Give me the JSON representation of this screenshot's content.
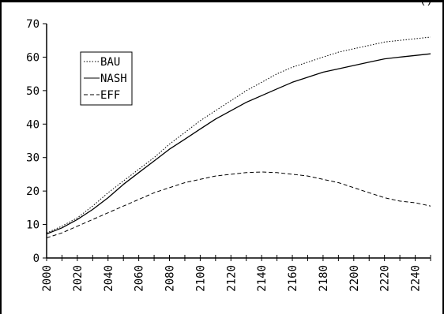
{
  "window": {
    "top_cut_text": "(       )"
  },
  "chart_data": {
    "type": "line",
    "title": "",
    "xlabel": "",
    "ylabel": "",
    "xlim": [
      2000,
      2250
    ],
    "ylim": [
      0,
      70
    ],
    "x_ticks": [
      2000,
      2020,
      2040,
      2060,
      2080,
      2100,
      2120,
      2140,
      2160,
      2180,
      2200,
      2220,
      2240
    ],
    "y_ticks": [
      0,
      10,
      20,
      30,
      40,
      50,
      60,
      70
    ],
    "legend": {
      "placement": "top-left"
    },
    "grid": false,
    "x": [
      2000,
      2010,
      2020,
      2030,
      2040,
      2050,
      2060,
      2070,
      2080,
      2090,
      2100,
      2110,
      2120,
      2130,
      2140,
      2150,
      2160,
      2170,
      2180,
      2190,
      2200,
      2210,
      2220,
      2230,
      2240,
      2250
    ],
    "series": [
      {
        "name": "BAU",
        "style": "dotted",
        "values": [
          7.5,
          9.5,
          12.0,
          15.5,
          19.5,
          23.0,
          26.5,
          30.0,
          34.0,
          37.5,
          41.0,
          44.0,
          47.0,
          50.0,
          52.5,
          55.0,
          57.0,
          58.5,
          60.0,
          61.5,
          62.5,
          63.5,
          64.5,
          65.0,
          65.5,
          66.0
        ]
      },
      {
        "name": "NASH",
        "style": "solid",
        "values": [
          7.2,
          9.0,
          11.5,
          14.5,
          18.0,
          22.0,
          25.5,
          29.0,
          32.5,
          35.5,
          38.5,
          41.5,
          44.0,
          46.5,
          48.5,
          50.5,
          52.5,
          54.0,
          55.5,
          56.5,
          57.5,
          58.5,
          59.5,
          60.0,
          60.5,
          61.0
        ]
      },
      {
        "name": "EFF",
        "style": "dashed",
        "values": [
          6.0,
          7.5,
          9.5,
          11.5,
          13.5,
          15.5,
          17.5,
          19.5,
          21.0,
          22.5,
          23.5,
          24.5,
          25.0,
          25.5,
          25.7,
          25.5,
          25.0,
          24.5,
          23.5,
          22.5,
          21.0,
          19.5,
          18.0,
          17.0,
          16.5,
          15.5
        ]
      }
    ]
  }
}
